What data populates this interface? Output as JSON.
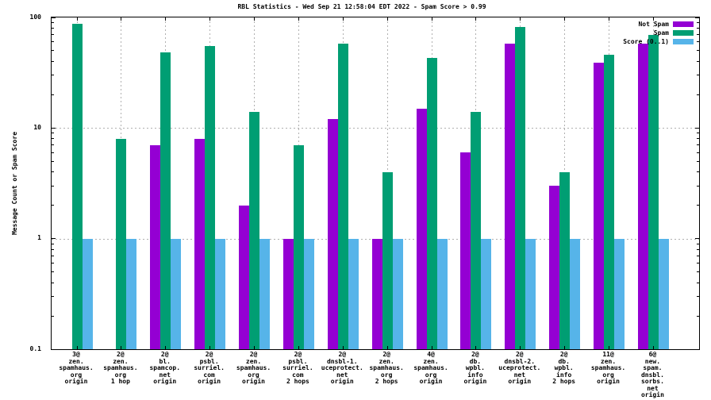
{
  "chart_data": {
    "type": "bar",
    "title": "RBL Statistics - Wed Sep 21 12:58:04 EDT 2022 - Spam Score > 0.99",
    "ylabel": "Message Count or Spam Score",
    "xlabel": "",
    "yscale": "log",
    "ylim": [
      0.1,
      100
    ],
    "ytick_labels": [
      "100",
      "10",
      "1",
      "0.1"
    ],
    "grid": true,
    "grid_y_values": [
      10,
      1
    ],
    "legend_position": "top-right-inside",
    "categories": [
      [
        "3@",
        "zen.",
        "spamhaus.",
        "org",
        "origin"
      ],
      [
        "2@",
        "zen.",
        "spamhaus.",
        "org",
        "1 hop"
      ],
      [
        "2@",
        "bl.",
        "spamcop.",
        "net",
        "origin"
      ],
      [
        "2@",
        "psbl.",
        "surriel.",
        "com",
        "origin"
      ],
      [
        "2@",
        "zen.",
        "spamhaus.",
        "org",
        "origin"
      ],
      [
        "2@",
        "psbl.",
        "surriel.",
        "com",
        "2 hops"
      ],
      [
        "2@",
        "dnsbl-1.",
        "uceprotect.",
        "net",
        "origin"
      ],
      [
        "2@",
        "zen.",
        "spamhaus.",
        "org",
        "2 hops"
      ],
      [
        "4@",
        "zen.",
        "spamhaus.",
        "org",
        "origin"
      ],
      [
        "2@",
        "db.",
        "wpbl.",
        "info",
        "origin"
      ],
      [
        "2@",
        "dnsbl-2.",
        "uceprotect.",
        "net",
        "origin"
      ],
      [
        "2@",
        "db.",
        "wpbl.",
        "info",
        "2 hops"
      ],
      [
        "11@",
        "zen.",
        "spamhaus.",
        "org",
        "origin"
      ],
      [
        "6@",
        "new.",
        "spam.",
        "dnsbl.",
        "sorbs.",
        "net",
        "origin"
      ]
    ],
    "series": [
      {
        "name": "Not Spam",
        "color": "#9400d3",
        "values": [
          null,
          null,
          7,
          8,
          2,
          1,
          12,
          1,
          15,
          6,
          58,
          3,
          39,
          58
        ]
      },
      {
        "name": "Spam",
        "color": "#009e73",
        "values": [
          87,
          8,
          48,
          55,
          14,
          7,
          58,
          4,
          43,
          14,
          82,
          4,
          46,
          70
        ]
      },
      {
        "name": "Score (0..1)",
        "color": "#56b4e9",
        "values": [
          1,
          1,
          1,
          1,
          1,
          1,
          1,
          1,
          1,
          1,
          1,
          1,
          1,
          1
        ]
      }
    ]
  }
}
